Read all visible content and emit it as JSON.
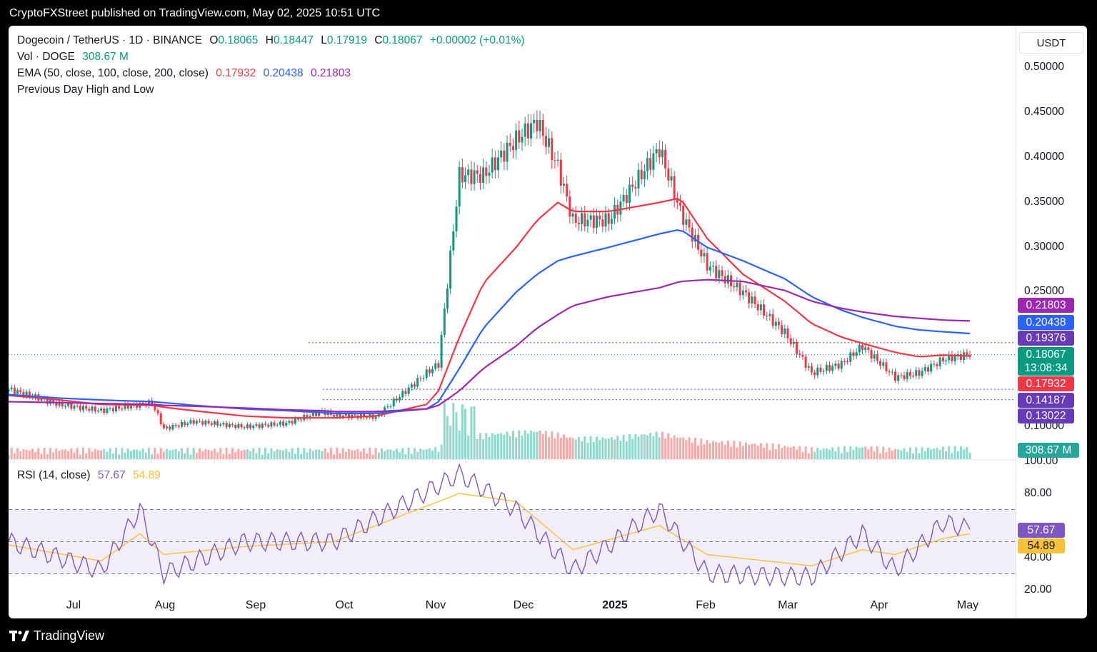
{
  "header": {
    "publisher_line": "CryptoFXStreet published on TradingView.com, May 02, 2025 10:51 UTC"
  },
  "footer": {
    "brand": "TradingView"
  },
  "symbol": {
    "title": "Dogecoin / TetherUS · 1D · BINANCE",
    "o_label": "O",
    "o": "0.18065",
    "h_label": "H",
    "h": "0.18447",
    "l_label": "L",
    "l": "0.17919",
    "c_label": "C",
    "c": "0.18067",
    "change": "+0.00002 (+0.01%)"
  },
  "vol": {
    "label": "Vol · DOGE",
    "value": "308.67 M"
  },
  "ema": {
    "label": "EMA (50, close, 100, close, 200, close)",
    "v50": "0.17932",
    "v100": "0.20438",
    "v200": "0.21803"
  },
  "pdhl": {
    "label": "Previous Day High and Low"
  },
  "rsi": {
    "label": "RSI (14, close)",
    "value": "57.67",
    "ma": "54.89"
  },
  "price_scale": {
    "currency": "USDT",
    "ticks": [
      "0.50000",
      "0.45000",
      "0.40000",
      "0.35000",
      "0.30000",
      "0.25000",
      "0.10000"
    ],
    "rsi_ticks": [
      "100.00",
      "80.00",
      "40.00",
      "20.00"
    ]
  },
  "tags": {
    "ema200": "0.21803",
    "ema100": "0.20438",
    "level1": "0.19376",
    "last_price": "0.18067",
    "countdown": "13:08:34",
    "ema50": "0.17932",
    "level2": "0.14187",
    "level3": "0.13022",
    "volume": "308.67 M",
    "rsi": "57.67",
    "rsi_ma": "54.89"
  },
  "x_axis": [
    "Jul",
    "Aug",
    "Sep",
    "Oct",
    "Nov",
    "Dec",
    "2025",
    "Feb",
    "Mar",
    "Apr",
    "May"
  ],
  "colors": {
    "up": "#089981",
    "down": "#f23645",
    "ema50": "#f23645",
    "ema100": "#2962ff",
    "ema200": "#9c27b0",
    "rsi": "#7e57c2",
    "rsi_ma": "#f7c13a"
  },
  "chart_data": {
    "type": "line",
    "title": "Dogecoin / TetherUS · 1D · BINANCE",
    "x": [
      "2024-06-14",
      "2024-07-01",
      "2024-07-15",
      "2024-08-01",
      "2024-08-05",
      "2024-08-15",
      "2024-09-01",
      "2024-09-15",
      "2024-09-27",
      "2024-10-01",
      "2024-10-15",
      "2024-11-01",
      "2024-11-05",
      "2024-11-12",
      "2024-11-20",
      "2024-12-01",
      "2024-12-08",
      "2024-12-15",
      "2024-12-20",
      "2025-01-01",
      "2025-01-18",
      "2025-01-25",
      "2025-02-03",
      "2025-02-15",
      "2025-03-01",
      "2025-03-10",
      "2025-03-20",
      "2025-03-27",
      "2025-04-07",
      "2025-04-15",
      "2025-04-23",
      "2025-05-02"
    ],
    "series": [
      {
        "values": [
          0.142,
          0.125,
          0.118,
          0.127,
          0.098,
          0.106,
          0.1,
          0.104,
          0.117,
          0.113,
          0.111,
          0.16,
          0.17,
          0.38,
          0.38,
          0.42,
          0.44,
          0.39,
          0.33,
          0.33,
          0.41,
          0.34,
          0.28,
          0.25,
          0.205,
          0.16,
          0.17,
          0.19,
          0.155,
          0.16,
          0.175,
          0.181
        ]
      },
      {
        "name": "EMA 50",
        "values": [
          0.135,
          0.13,
          0.125,
          0.124,
          0.122,
          0.118,
          0.112,
          0.11,
          0.11,
          0.11,
          0.112,
          0.125,
          0.14,
          0.2,
          0.26,
          0.3,
          0.33,
          0.35,
          0.34,
          0.34,
          0.35,
          0.355,
          0.31,
          0.27,
          0.24,
          0.215,
          0.2,
          0.193,
          0.183,
          0.178,
          0.18,
          0.179
        ]
      },
      {
        "name": "EMA 100",
        "values": [
          0.136,
          0.132,
          0.13,
          0.128,
          0.127,
          0.124,
          0.12,
          0.118,
          0.116,
          0.115,
          0.115,
          0.12,
          0.128,
          0.165,
          0.21,
          0.25,
          0.27,
          0.285,
          0.29,
          0.3,
          0.315,
          0.32,
          0.3,
          0.285,
          0.265,
          0.245,
          0.23,
          0.222,
          0.212,
          0.208,
          0.206,
          0.204
        ]
      },
      {
        "name": "EMA 200",
        "values": [
          0.128,
          0.127,
          0.126,
          0.125,
          0.124,
          0.123,
          0.121,
          0.119,
          0.118,
          0.117,
          0.117,
          0.12,
          0.124,
          0.14,
          0.165,
          0.19,
          0.21,
          0.225,
          0.235,
          0.245,
          0.255,
          0.262,
          0.264,
          0.262,
          0.252,
          0.24,
          0.232,
          0.228,
          0.223,
          0.221,
          0.219,
          0.218
        ]
      }
    ],
    "volume_last": 308.67,
    "rsi": {
      "x": [
        "2024-06-14",
        "2024-07-15",
        "2024-07-28",
        "2024-08-05",
        "2024-09-01",
        "2024-10-01",
        "2024-11-12",
        "2024-12-01",
        "2024-12-20",
        "2025-01-18",
        "2025-02-03",
        "2025-03-10",
        "2025-03-27",
        "2025-04-07",
        "2025-04-23",
        "2025-05-02"
      ],
      "values": [
        50,
        32,
        70,
        30,
        50,
        50,
        92,
        70,
        32,
        70,
        30,
        28,
        55,
        32,
        62,
        57.67
      ],
      "ma": [
        48,
        38,
        55,
        42,
        47,
        50,
        80,
        75,
        45,
        60,
        42,
        35,
        45,
        42,
        52,
        54.89
      ],
      "bands": [
        70,
        30
      ]
    },
    "levels": [
      0.19376,
      0.14187,
      0.13022
    ],
    "ylim": [
      0.07,
      0.52
    ]
  }
}
